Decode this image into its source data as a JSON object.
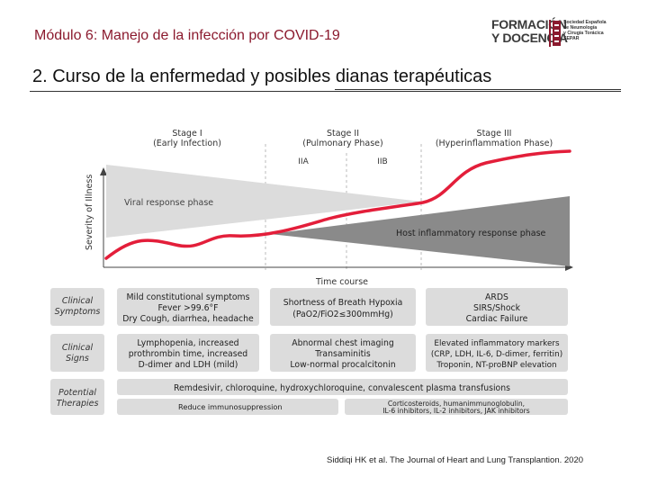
{
  "header": {
    "module_title": "Módulo 6: Manejo de la infección por COVID-19",
    "section_title": "2. Curso de la enfermedad y posibles dianas terapéuticas"
  },
  "logo": {
    "line1": "FORMACIÓN",
    "line2": "Y DOCENCIA",
    "society_line1": "Sociedad Española",
    "society_line2": "de Neumología",
    "society_line3": "y Cirugía Torácica",
    "society_line4": "SEPAR",
    "brand_color": "#8b1a2e"
  },
  "diagram": {
    "stage1": {
      "name": "Stage I",
      "phase": "(Early Infection)"
    },
    "stage2": {
      "name": "Stage II",
      "phase": "(Pulmonary Phase)",
      "sub_a": "IIA",
      "sub_b": "IIB"
    },
    "stage3": {
      "name": "Stage III",
      "phase": "(Hyperinflammation Phase)"
    },
    "y_axis_label": "Severity of Illness",
    "x_axis_label": "Time course",
    "viral_phase": "Viral response phase",
    "host_phase": "Host inflammatory response phase",
    "curve_color": "#e31e3a",
    "rows": [
      {
        "label1": "Clinical",
        "label2": "Symptoms",
        "cells": [
          [
            "Mild constitutional symptoms",
            "Fever >99.6°F",
            "Dry Cough, diarrhea, headache"
          ],
          [
            "Shortness of Breath Hypoxia",
            "(PaO2/FiO2≤300mmHg)"
          ],
          [
            "ARDS",
            "SIRS/Shock",
            "Cardiac Failure"
          ]
        ]
      },
      {
        "label1": "Clinical",
        "label2": "Signs",
        "cells": [
          [
            "Lymphopenia, increased",
            "prothrombin time, increased",
            "D-dimer and LDH (mild)"
          ],
          [
            "Abnormal chest imaging",
            "Transaminitis",
            "Low-normal procalcitonin"
          ],
          [
            "Elevated inflammatory markers",
            "(CRP, LDH, IL-6, D-dimer, ferritin)",
            "Troponin, NT-proBNP elevation"
          ]
        ]
      }
    ],
    "therapies": {
      "label1": "Potential",
      "label2": "Therapies",
      "row1": "Remdesivir, chloroquine, hydroxychloroquine, convalescent plasma transfusions",
      "row2_left": "Reduce immunosuppression",
      "row2_right_line1": "Corticosteroids, humanimmunoglobulin,",
      "row2_right_line2": "IL-6 inhibitors, IL-2 inhibitors, JAK inhibitors"
    }
  },
  "citation": "Siddiqi HK et al. The Journal of Heart and Lung Transplantion. 2020"
}
